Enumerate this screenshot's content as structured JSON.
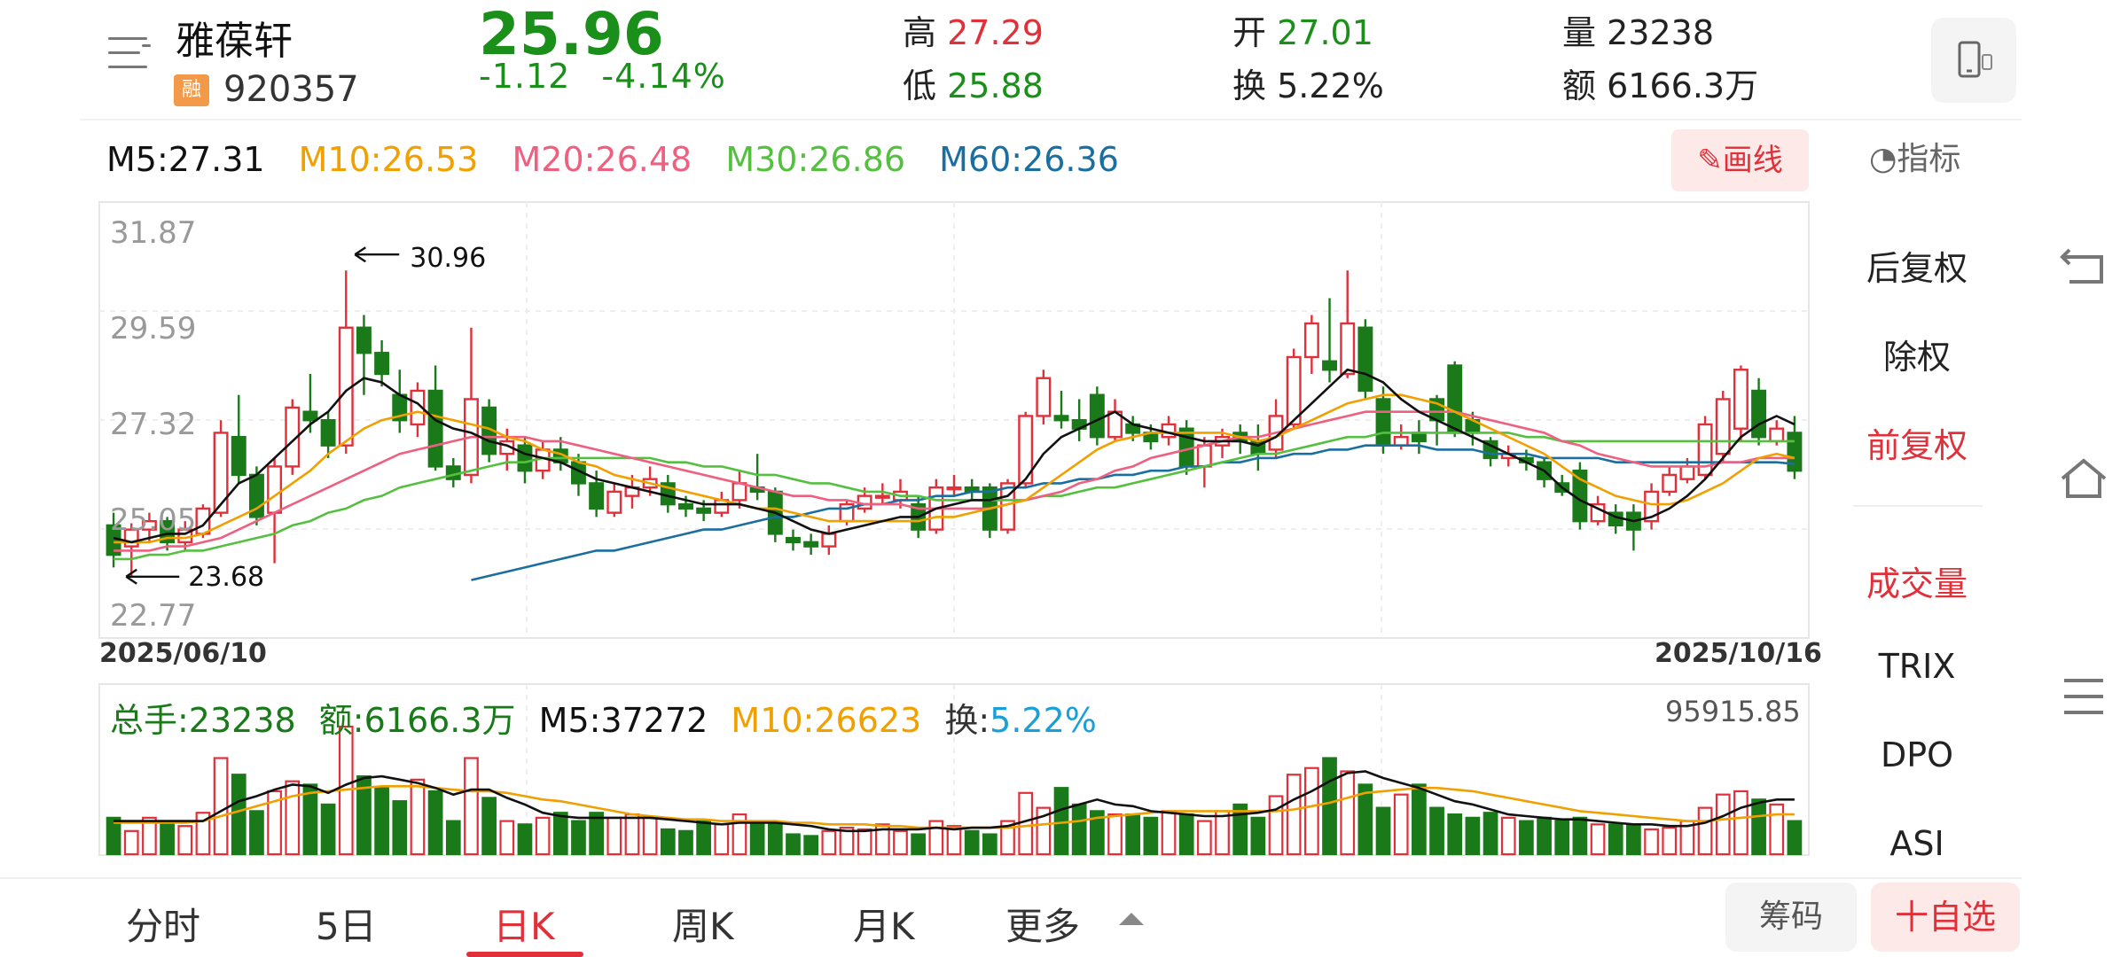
{
  "header": {
    "name": "雅葆轩",
    "rong_badge": "融",
    "code": "920357",
    "price": "25.96",
    "change": "-1.12",
    "change_pct": "-4.14%",
    "high_label": "高",
    "high": "27.29",
    "low_label": "低",
    "low": "25.88",
    "open_label": "开",
    "open": "27.01",
    "turnover_label": "换",
    "turnover": "5.22%",
    "volume_label": "量",
    "volume": "23238",
    "amount_label": "额",
    "amount": "6166.3万"
  },
  "ma_legend": {
    "m5": "M5:27.31",
    "m10": "M10:26.53",
    "m20": "M20:26.48",
    "m30": "M30:26.86",
    "m60": "M60:26.36"
  },
  "toolbar": {
    "draw_label": "画线",
    "indicator_label": "指标"
  },
  "side_panel": {
    "items": [
      "后复权",
      "除权",
      "前复权",
      "成交量",
      "TRIX",
      "DPO",
      "ASI"
    ]
  },
  "volume_legend": {
    "total": "总手:23238",
    "amount": "额:6166.3万",
    "m5": "M5:37272",
    "m10": "M10:26623",
    "turnover_label": "换:",
    "turnover": "5.22%",
    "max": "95915.85"
  },
  "tabs": [
    "分时",
    "5日",
    "日K",
    "周K",
    "月K",
    "更多"
  ],
  "buttons": {
    "chips": "筹码",
    "add_favorite": "十自选"
  },
  "colors": {
    "up": "#e0303a",
    "down": "#1a7a1a",
    "m5": "#111111",
    "m10": "#f0a000",
    "m20": "#ee6080",
    "m30": "#55c040",
    "m60": "#1a6fa0"
  },
  "chart_data": {
    "type": "candlestick",
    "x_start": "2025/06/10",
    "x_end": "2025/10/16",
    "y_ticks": [
      31.87,
      29.59,
      27.32,
      25.05,
      22.77
    ],
    "ylim": [
      22.77,
      31.87
    ],
    "high_marker": 30.96,
    "low_marker": 23.68,
    "candles": [
      [
        24.9,
        24.2,
        25.2,
        23.9
      ],
      [
        24.4,
        24.8,
        24.95,
        23.68
      ],
      [
        24.8,
        25.0,
        25.2,
        24.5
      ],
      [
        25.0,
        24.5,
        25.1,
        24.3
      ],
      [
        24.5,
        24.8,
        25.0,
        24.3
      ],
      [
        24.7,
        25.3,
        25.4,
        24.6
      ],
      [
        25.2,
        27.1,
        27.4,
        25.1
      ],
      [
        27.0,
        26.1,
        28.0,
        25.9
      ],
      [
        26.1,
        25.1,
        26.3,
        24.9
      ],
      [
        25.2,
        26.3,
        26.5,
        24.0
      ],
      [
        26.3,
        27.7,
        27.9,
        26.1
      ],
      [
        27.6,
        27.4,
        28.5,
        27.1
      ],
      [
        27.4,
        26.8,
        27.6,
        26.5
      ],
      [
        26.8,
        29.6,
        30.96,
        26.6
      ],
      [
        29.6,
        29.0,
        29.9,
        28.0
      ],
      [
        29.0,
        28.5,
        29.3,
        28.2
      ],
      [
        28.0,
        27.4,
        28.6,
        27.1
      ],
      [
        27.3,
        28.1,
        28.3,
        27.0
      ],
      [
        28.1,
        26.3,
        28.7,
        26.2
      ],
      [
        26.3,
        26.0,
        26.5,
        25.8
      ],
      [
        26.1,
        27.9,
        29.6,
        25.9
      ],
      [
        27.7,
        26.6,
        27.9,
        26.4
      ],
      [
        26.6,
        26.9,
        27.2,
        26.2
      ],
      [
        26.8,
        26.2,
        27.0,
        25.9
      ],
      [
        26.2,
        26.7,
        26.9,
        26.0
      ],
      [
        26.7,
        26.4,
        27.0,
        26.2
      ],
      [
        26.4,
        25.9,
        26.6,
        25.6
      ],
      [
        25.9,
        25.3,
        26.2,
        25.1
      ],
      [
        25.2,
        25.7,
        25.9,
        25.1
      ],
      [
        25.6,
        25.8,
        26.1,
        25.3
      ],
      [
        25.8,
        26.0,
        26.3,
        25.6
      ],
      [
        25.9,
        25.4,
        26.1,
        25.2
      ],
      [
        25.4,
        25.3,
        25.6,
        25.1
      ],
      [
        25.3,
        25.2,
        25.5,
        25.0
      ],
      [
        25.2,
        25.5,
        25.7,
        25.1
      ],
      [
        25.5,
        25.9,
        26.2,
        25.3
      ],
      [
        25.8,
        25.7,
        26.6,
        25.5
      ],
      [
        25.7,
        24.7,
        25.8,
        24.5
      ],
      [
        24.6,
        24.5,
        24.8,
        24.3
      ],
      [
        24.5,
        24.4,
        24.7,
        24.2
      ],
      [
        24.4,
        24.7,
        24.9,
        24.2
      ],
      [
        25.0,
        25.4,
        25.5,
        24.9
      ],
      [
        25.3,
        25.6,
        25.8,
        25.2
      ],
      [
        25.6,
        25.6,
        25.9,
        25.4
      ],
      [
        25.5,
        25.7,
        26.0,
        25.3
      ],
      [
        25.4,
        24.8,
        25.6,
        24.6
      ],
      [
        24.8,
        25.8,
        26.0,
        24.7
      ],
      [
        25.8,
        25.8,
        26.1,
        25.6
      ],
      [
        25.8,
        25.7,
        26.0,
        25.5
      ],
      [
        25.8,
        24.8,
        25.9,
        24.6
      ],
      [
        24.8,
        25.9,
        26.0,
        24.7
      ],
      [
        25.9,
        27.5,
        27.6,
        25.8
      ],
      [
        27.5,
        28.4,
        28.6,
        27.3
      ],
      [
        27.5,
        27.4,
        28.1,
        27.2
      ],
      [
        27.4,
        27.2,
        27.9,
        26.9
      ],
      [
        28.0,
        27.0,
        28.2,
        26.8
      ],
      [
        27.0,
        27.6,
        27.9,
        26.9
      ],
      [
        27.3,
        27.1,
        27.5,
        26.9
      ],
      [
        27.1,
        26.9,
        27.3,
        26.7
      ],
      [
        27.0,
        27.3,
        27.5,
        26.8
      ],
      [
        27.2,
        26.3,
        27.4,
        26.1
      ],
      [
        26.3,
        26.8,
        27.0,
        25.8
      ],
      [
        26.8,
        27.0,
        27.2,
        26.5
      ],
      [
        27.1,
        26.9,
        27.3,
        26.6
      ],
      [
        26.9,
        26.6,
        27.3,
        26.2
      ],
      [
        26.7,
        27.5,
        27.9,
        26.5
      ],
      [
        27.3,
        28.9,
        29.1,
        27.2
      ],
      [
        28.9,
        29.7,
        29.9,
        28.5
      ],
      [
        28.8,
        28.6,
        30.3,
        28.3
      ],
      [
        28.5,
        29.7,
        30.96,
        28.4
      ],
      [
        29.6,
        28.1,
        29.8,
        27.9
      ],
      [
        27.9,
        26.8,
        28.2,
        26.6
      ],
      [
        26.8,
        27.0,
        27.3,
        26.7
      ],
      [
        27.1,
        26.9,
        27.4,
        26.6
      ],
      [
        27.9,
        27.4,
        28.0,
        26.8
      ],
      [
        28.7,
        27.1,
        28.8,
        27.0
      ],
      [
        27.4,
        27.1,
        27.6,
        26.8
      ],
      [
        26.9,
        26.5,
        27.0,
        26.3
      ],
      [
        26.5,
        26.6,
        26.8,
        26.3
      ],
      [
        26.5,
        26.4,
        26.7,
        26.2
      ],
      [
        26.4,
        26.0,
        26.5,
        25.8
      ],
      [
        25.9,
        25.7,
        26.1,
        25.6
      ],
      [
        26.2,
        25.0,
        26.4,
        24.8
      ],
      [
        25.0,
        25.4,
        25.6,
        24.9
      ],
      [
        25.2,
        24.9,
        25.4,
        24.7
      ],
      [
        25.2,
        24.8,
        25.4,
        24.3
      ],
      [
        25.0,
        25.7,
        25.9,
        24.8
      ],
      [
        25.7,
        26.1,
        26.3,
        25.6
      ],
      [
        26.0,
        26.3,
        26.5,
        25.9
      ],
      [
        26.1,
        27.3,
        27.5,
        26.0
      ],
      [
        26.6,
        27.9,
        28.1,
        26.4
      ],
      [
        27.2,
        28.6,
        28.7,
        26.9
      ],
      [
        28.1,
        27.0,
        28.4,
        26.8
      ],
      [
        26.9,
        27.2,
        27.4,
        26.8
      ],
      [
        27.1,
        26.2,
        27.5,
        26.0
      ]
    ],
    "ma5": [
      24.6,
      24.5,
      24.6,
      24.7,
      24.7,
      24.9,
      25.4,
      25.9,
      26.1,
      26.5,
      26.9,
      27.3,
      27.6,
      28.1,
      28.4,
      28.3,
      28.0,
      27.8,
      27.4,
      27.2,
      27.1,
      26.9,
      26.8,
      26.6,
      26.5,
      26.4,
      26.2,
      26.0,
      25.9,
      25.8,
      25.7,
      25.6,
      25.5,
      25.4,
      25.4,
      25.4,
      25.3,
      25.2,
      25.0,
      24.8,
      24.7,
      24.8,
      24.9,
      25.0,
      25.1,
      25.1,
      25.3,
      25.4,
      25.5,
      25.5,
      25.6,
      26.0,
      26.6,
      27.0,
      27.2,
      27.4,
      27.6,
      27.3,
      27.2,
      27.1,
      27.0,
      26.9,
      26.9,
      26.9,
      26.8,
      27.0,
      27.4,
      27.8,
      28.2,
      28.6,
      28.5,
      28.3,
      27.9,
      27.6,
      27.4,
      27.2,
      27.0,
      26.8,
      26.6,
      26.4,
      26.2,
      25.8,
      25.5,
      25.3,
      25.1,
      25.0,
      25.1,
      25.3,
      25.6,
      26.0,
      26.5,
      27.0,
      27.3,
      27.5,
      27.3
    ],
    "ma10": [
      24.5,
      24.5,
      24.5,
      24.6,
      24.6,
      24.7,
      24.9,
      25.1,
      25.3,
      25.6,
      25.9,
      26.2,
      26.6,
      26.9,
      27.2,
      27.4,
      27.5,
      27.6,
      27.5,
      27.4,
      27.3,
      27.2,
      27.0,
      26.9,
      26.7,
      26.6,
      26.4,
      26.3,
      26.1,
      26.0,
      25.9,
      25.8,
      25.7,
      25.6,
      25.5,
      25.4,
      25.3,
      25.3,
      25.2,
      25.1,
      25.0,
      25.0,
      25.0,
      25.0,
      25.0,
      25.0,
      25.1,
      25.1,
      25.2,
      25.3,
      25.4,
      25.5,
      25.8,
      26.1,
      26.4,
      26.7,
      26.9,
      27.0,
      27.1,
      27.1,
      27.1,
      27.1,
      27.1,
      27.0,
      26.9,
      27.0,
      27.2,
      27.4,
      27.6,
      27.8,
      27.9,
      28.0,
      28.0,
      27.9,
      27.8,
      27.6,
      27.4,
      27.2,
      27.0,
      26.8,
      26.6,
      26.3,
      26.0,
      25.8,
      25.6,
      25.5,
      25.4,
      25.4,
      25.5,
      25.7,
      25.9,
      26.2,
      26.5,
      26.6,
      26.5
    ],
    "ma20": [
      24.3,
      24.3,
      24.3,
      24.4,
      24.4,
      24.5,
      24.6,
      24.8,
      25.0,
      25.2,
      25.4,
      25.6,
      25.8,
      26.0,
      26.2,
      26.4,
      26.6,
      26.7,
      26.8,
      26.9,
      27.0,
      27.0,
      27.0,
      27.0,
      26.9,
      26.9,
      26.8,
      26.7,
      26.6,
      26.5,
      26.4,
      26.3,
      26.2,
      26.1,
      26.0,
      25.9,
      25.8,
      25.7,
      25.6,
      25.6,
      25.5,
      25.5,
      25.4,
      25.4,
      25.4,
      25.3,
      25.3,
      25.3,
      25.3,
      25.3,
      25.4,
      25.5,
      25.6,
      25.7,
      25.9,
      26.0,
      26.2,
      26.3,
      26.5,
      26.6,
      26.7,
      26.8,
      26.9,
      27.0,
      27.0,
      27.1,
      27.2,
      27.3,
      27.4,
      27.5,
      27.6,
      27.6,
      27.6,
      27.6,
      27.6,
      27.6,
      27.5,
      27.4,
      27.3,
      27.2,
      27.1,
      26.9,
      26.8,
      26.6,
      26.5,
      26.4,
      26.3,
      26.3,
      26.3,
      26.3,
      26.4,
      26.4,
      26.5,
      26.5,
      26.5
    ],
    "ma30": [
      24.1,
      24.1,
      24.2,
      24.2,
      24.3,
      24.3,
      24.4,
      24.5,
      24.6,
      24.7,
      24.9,
      25.0,
      25.2,
      25.3,
      25.5,
      25.6,
      25.8,
      25.9,
      26.0,
      26.1,
      26.2,
      26.3,
      26.4,
      26.4,
      26.5,
      26.5,
      26.5,
      26.5,
      26.5,
      26.5,
      26.5,
      26.4,
      26.4,
      26.3,
      26.3,
      26.2,
      26.1,
      26.1,
      26.0,
      25.9,
      25.9,
      25.8,
      25.7,
      25.7,
      25.6,
      25.6,
      25.5,
      25.5,
      25.5,
      25.5,
      25.5,
      25.5,
      25.6,
      25.6,
      25.7,
      25.8,
      25.8,
      25.9,
      26.0,
      26.1,
      26.2,
      26.3,
      26.4,
      26.5,
      26.6,
      26.6,
      26.7,
      26.8,
      26.9,
      27.0,
      27.0,
      27.1,
      27.1,
      27.1,
      27.1,
      27.1,
      27.1,
      27.1,
      27.1,
      27.0,
      27.0,
      26.9,
      26.9,
      26.9,
      26.9,
      26.9,
      26.9,
      26.9,
      26.9,
      26.9,
      26.9,
      26.9,
      26.9,
      26.9,
      26.9
    ],
    "ma60_start": 20,
    "ma60": [
      23.6,
      23.7,
      23.8,
      23.9,
      24.0,
      24.1,
      24.2,
      24.3,
      24.3,
      24.4,
      24.5,
      24.6,
      24.7,
      24.8,
      24.8,
      24.9,
      25.0,
      25.1,
      25.1,
      25.2,
      25.3,
      25.3,
      25.4,
      25.4,
      25.5,
      25.5,
      25.6,
      25.6,
      25.7,
      25.7,
      25.8,
      25.8,
      25.9,
      25.9,
      26.0,
      26.0,
      26.1,
      26.1,
      26.2,
      26.2,
      26.3,
      26.3,
      26.4,
      26.4,
      26.5,
      26.5,
      26.6,
      26.6,
      26.7,
      26.7,
      26.8,
      26.8,
      26.8,
      26.8,
      26.7,
      26.7,
      26.7,
      26.6,
      26.6,
      26.6,
      26.5,
      26.5,
      26.5,
      26.5,
      26.4,
      26.4,
      26.4,
      26.4,
      26.4,
      26.4,
      26.4,
      26.4,
      26.4,
      26.4,
      26.36
    ],
    "volume": [
      22,
      14,
      22,
      20,
      17,
      25,
      58,
      48,
      26,
      38,
      44,
      42,
      30,
      77,
      47,
      40,
      32,
      45,
      38,
      20,
      58,
      34,
      20,
      18,
      22,
      25,
      20,
      25,
      22,
      24,
      22,
      15,
      14,
      20,
      18,
      24,
      20,
      18,
      12,
      11,
      14,
      16,
      15,
      18,
      14,
      12,
      20,
      17,
      14,
      12,
      20,
      37,
      28,
      40,
      30,
      26,
      24,
      24,
      22,
      26,
      24,
      20,
      26,
      30,
      22,
      35,
      48,
      52,
      58,
      50,
      42,
      28,
      36,
      42,
      28,
      24,
      22,
      25,
      22,
      20,
      22,
      20,
      22,
      18,
      18,
      18,
      15,
      16,
      20,
      28,
      36,
      38,
      33,
      30,
      20
    ],
    "vol_ma5": [
      20,
      20,
      20,
      20,
      20,
      20,
      26,
      32,
      35,
      39,
      42,
      41,
      37,
      42,
      46,
      47,
      45,
      43,
      40,
      36,
      39,
      39,
      34,
      30,
      25,
      23,
      22,
      22,
      22,
      22,
      22,
      21,
      20,
      19,
      18,
      19,
      19,
      19,
      18,
      17,
      15,
      14,
      14,
      15,
      15,
      15,
      16,
      15,
      16,
      16,
      17,
      20,
      23,
      27,
      30,
      33,
      30,
      29,
      26,
      25,
      24,
      23,
      23,
      24,
      25,
      27,
      33,
      38,
      44,
      49,
      50,
      46,
      43,
      40,
      36,
      32,
      30,
      27,
      24,
      23,
      22,
      21,
      21,
      20,
      19,
      18,
      18,
      17,
      17,
      19,
      23,
      28,
      31,
      33,
      33
    ],
    "vol_ma10": [
      19,
      19,
      19,
      19,
      19,
      20,
      23,
      26,
      29,
      32,
      35,
      37,
      38,
      39,
      40,
      41,
      41,
      41,
      40,
      39,
      38,
      38,
      37,
      35,
      33,
      32,
      30,
      28,
      26,
      24,
      23,
      22,
      21,
      21,
      20,
      20,
      20,
      20,
      19,
      19,
      18,
      18,
      18,
      17,
      17,
      16,
      16,
      16,
      16,
      16,
      16,
      17,
      18,
      19,
      20,
      22,
      23,
      24,
      25,
      26,
      26,
      26,
      26,
      26,
      26,
      26,
      27,
      29,
      31,
      34,
      37,
      38,
      39,
      40,
      40,
      39,
      38,
      36,
      34,
      32,
      30,
      28,
      26,
      25,
      24,
      23,
      22,
      21,
      20,
      20,
      21,
      22,
      23,
      24,
      24
    ],
    "vol_max": 95915.85
  }
}
